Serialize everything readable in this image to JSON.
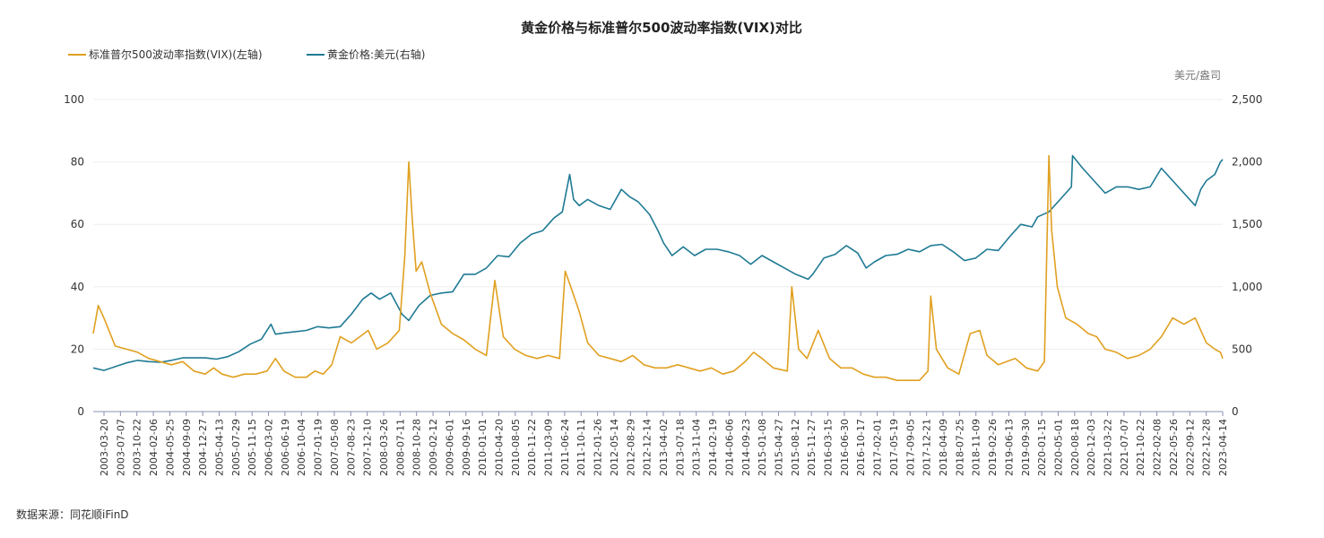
{
  "chart_data": {
    "type": "line",
    "title": "黄金价格与标准普尔500波动率指数(VIX)对比",
    "source": "数据来源：同花顺iFinD",
    "colors": {
      "vix": "#e0a020",
      "gold": "#1f7a94"
    },
    "legend_position": "top-left",
    "left_axis": {
      "ticks": [
        "0",
        "20",
        "40",
        "60",
        "80",
        "100"
      ],
      "ylim": [
        0,
        100
      ]
    },
    "right_axis": {
      "unit": "美元/盎司",
      "ticks": [
        "0",
        "500",
        "1,000",
        "1,500",
        "2,000",
        "2,500"
      ],
      "ylim": [
        0,
        2500
      ]
    },
    "x_tick_labels": [
      "2003-03-20",
      "2003-07-07",
      "2003-10-22",
      "2004-02-06",
      "2004-05-25",
      "2004-09-09",
      "2004-12-27",
      "2005-04-13",
      "2005-07-29",
      "2005-11-15",
      "2006-03-02",
      "2006-06-19",
      "2006-10-04",
      "2007-01-19",
      "2007-05-08",
      "2007-08-23",
      "2007-12-10",
      "2008-03-26",
      "2008-07-11",
      "2008-10-28",
      "2009-02-12",
      "2009-06-01",
      "2009-09-16",
      "2010-01-01",
      "2010-04-20",
      "2010-08-05",
      "2010-11-22",
      "2011-03-09",
      "2011-06-24",
      "2011-10-11",
      "2012-01-26",
      "2012-05-14",
      "2012-08-29",
      "2012-12-14",
      "2013-04-02",
      "2013-07-18",
      "2013-11-04",
      "2014-02-19",
      "2014-06-06",
      "2014-09-23",
      "2015-01-08",
      "2015-04-27",
      "2015-08-12",
      "2015-11-27",
      "2016-03-15",
      "2016-06-30",
      "2016-10-17",
      "2017-02-01",
      "2017-05-19",
      "2017-09-05",
      "2017-12-21",
      "2018-04-09",
      "2018-07-25",
      "2018-11-09",
      "2019-02-26",
      "2019-06-13",
      "2019-09-30",
      "2020-01-15",
      "2020-05-01",
      "2020-08-18",
      "2020-12-03",
      "2021-03-22",
      "2021-07-07",
      "2021-10-22",
      "2022-02-08",
      "2022-05-26",
      "2022-09-12",
      "2022-12-28",
      "2023-04-14"
    ],
    "series": [
      {
        "name": "标准普尔500波动率指数(VIX)(左轴)",
        "axis": "left",
        "x": [
          2003.21,
          2003.3,
          2003.4,
          2003.6,
          2003.8,
          2004.0,
          2004.2,
          2004.4,
          2004.6,
          2004.8,
          2005.0,
          2005.2,
          2005.35,
          2005.5,
          2005.7,
          2005.9,
          2006.1,
          2006.3,
          2006.45,
          2006.6,
          2006.8,
          2007.0,
          2007.15,
          2007.3,
          2007.45,
          2007.6,
          2007.8,
          2007.95,
          2008.1,
          2008.25,
          2008.45,
          2008.65,
          2008.75,
          2008.82,
          2008.88,
          2008.95,
          2009.05,
          2009.2,
          2009.4,
          2009.6,
          2009.8,
          2010.0,
          2010.2,
          2010.35,
          2010.5,
          2010.7,
          2010.9,
          2011.1,
          2011.3,
          2011.5,
          2011.6,
          2011.7,
          2011.85,
          2012.0,
          2012.2,
          2012.4,
          2012.6,
          2012.8,
          2013.0,
          2013.2,
          2013.4,
          2013.6,
          2013.8,
          2014.0,
          2014.2,
          2014.4,
          2014.6,
          2014.8,
          2014.95,
          2015.1,
          2015.3,
          2015.55,
          2015.63,
          2015.75,
          2015.9,
          2016.1,
          2016.3,
          2016.5,
          2016.7,
          2016.9,
          2017.1,
          2017.3,
          2017.5,
          2017.7,
          2017.9,
          2018.05,
          2018.1,
          2018.2,
          2018.4,
          2018.6,
          2018.8,
          2018.97,
          2019.1,
          2019.3,
          2019.45,
          2019.6,
          2019.8,
          2020.0,
          2020.12,
          2020.2,
          2020.25,
          2020.35,
          2020.5,
          2020.7,
          2020.9,
          2021.05,
          2021.2,
          2021.4,
          2021.6,
          2021.8,
          2022.0,
          2022.2,
          2022.4,
          2022.6,
          2022.8,
          2023.0,
          2023.15,
          2023.25,
          2023.29
        ],
        "values": [
          25,
          34,
          30,
          21,
          20,
          19,
          17,
          16,
          15,
          16,
          13,
          12,
          14,
          12,
          11,
          12,
          12,
          13,
          17,
          13,
          11,
          11,
          13,
          12,
          15,
          24,
          22,
          24,
          26,
          20,
          22,
          26,
          50,
          80,
          62,
          45,
          48,
          38,
          28,
          25,
          23,
          20,
          18,
          42,
          24,
          20,
          18,
          17,
          18,
          17,
          45,
          40,
          32,
          22,
          18,
          17,
          16,
          18,
          15,
          14,
          14,
          15,
          14,
          13,
          14,
          12,
          13,
          16,
          19,
          17,
          14,
          13,
          40,
          20,
          17,
          26,
          17,
          14,
          14,
          12,
          11,
          11,
          10,
          10,
          10,
          13,
          37,
          20,
          14,
          12,
          25,
          26,
          18,
          15,
          16,
          17,
          14,
          13,
          16,
          82,
          58,
          40,
          30,
          28,
          25,
          24,
          20,
          19,
          17,
          18,
          20,
          24,
          30,
          28,
          30,
          22,
          20,
          19,
          17
        ]
      },
      {
        "name": "黄金价格:美元(右轴)",
        "axis": "right",
        "x": [
          2003.21,
          2003.4,
          2003.6,
          2003.8,
          2004.0,
          2004.2,
          2004.4,
          2004.6,
          2004.8,
          2005.0,
          2005.2,
          2005.4,
          2005.6,
          2005.8,
          2006.0,
          2006.2,
          2006.37,
          2006.45,
          2006.6,
          2006.8,
          2007.0,
          2007.2,
          2007.4,
          2007.6,
          2007.8,
          2008.0,
          2008.15,
          2008.3,
          2008.5,
          2008.7,
          2008.82,
          2009.0,
          2009.2,
          2009.4,
          2009.6,
          2009.8,
          2010.0,
          2010.2,
          2010.4,
          2010.6,
          2010.8,
          2011.0,
          2011.2,
          2011.4,
          2011.55,
          2011.68,
          2011.75,
          2011.85,
          2012.0,
          2012.2,
          2012.4,
          2012.6,
          2012.75,
          2012.9,
          2013.1,
          2013.25,
          2013.35,
          2013.5,
          2013.7,
          2013.9,
          2014.1,
          2014.3,
          2014.5,
          2014.7,
          2014.9,
          2015.1,
          2015.3,
          2015.5,
          2015.7,
          2015.92,
          2016.0,
          2016.2,
          2016.4,
          2016.6,
          2016.8,
          2016.95,
          2017.1,
          2017.3,
          2017.5,
          2017.7,
          2017.9,
          2018.1,
          2018.3,
          2018.5,
          2018.7,
          2018.9,
          2019.1,
          2019.3,
          2019.5,
          2019.7,
          2019.9,
          2020.0,
          2020.2,
          2020.4,
          2020.6,
          2020.62,
          2020.8,
          2021.0,
          2021.2,
          2021.4,
          2021.6,
          2021.8,
          2022.0,
          2022.2,
          2022.4,
          2022.6,
          2022.8,
          2022.9,
          2023.0,
          2023.15,
          2023.25,
          2023.29
        ],
        "values": [
          350,
          330,
          360,
          390,
          410,
          400,
          395,
          410,
          430,
          430,
          430,
          420,
          440,
          480,
          540,
          580,
          700,
          620,
          630,
          640,
          650,
          680,
          670,
          680,
          780,
          900,
          950,
          900,
          950,
          780,
          730,
          850,
          930,
          950,
          960,
          1100,
          1100,
          1150,
          1250,
          1240,
          1350,
          1420,
          1450,
          1550,
          1600,
          1900,
          1700,
          1650,
          1700,
          1650,
          1620,
          1780,
          1720,
          1680,
          1580,
          1450,
          1350,
          1250,
          1320,
          1250,
          1300,
          1300,
          1280,
          1250,
          1180,
          1250,
          1200,
          1150,
          1100,
          1060,
          1100,
          1230,
          1260,
          1330,
          1270,
          1150,
          1200,
          1250,
          1260,
          1300,
          1280,
          1330,
          1340,
          1280,
          1210,
          1230,
          1300,
          1290,
          1400,
          1500,
          1480,
          1560,
          1600,
          1700,
          1800,
          2050,
          1950,
          1850,
          1750,
          1800,
          1800,
          1780,
          1800,
          1950,
          1850,
          1750,
          1650,
          1780,
          1850,
          1900,
          2000,
          2020
        ]
      }
    ]
  }
}
